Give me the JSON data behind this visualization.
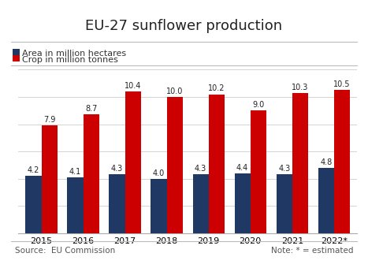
{
  "title": "EU-27 sunflower production",
  "years": [
    "2015",
    "2016",
    "2017",
    "2018",
    "2019",
    "2020",
    "2021",
    "2022*"
  ],
  "area": [
    4.2,
    4.1,
    4.3,
    4.0,
    4.3,
    4.4,
    4.3,
    4.8
  ],
  "crop": [
    7.9,
    8.7,
    10.4,
    10.0,
    10.2,
    9.0,
    10.3,
    10.5
  ],
  "area_color": "#1f3864",
  "crop_color": "#cc0000",
  "legend_area": "Area in million hectares",
  "legend_crop": "Crop in million tonnes",
  "source_text": "Source:  EU Commission",
  "note_text": "Note: * = estimated",
  "ylim": [
    0,
    12
  ],
  "bar_width": 0.38,
  "bg_color": "#ffffff",
  "title_fontsize": 13,
  "label_fontsize": 7,
  "tick_fontsize": 8,
  "legend_fontsize": 8,
  "footer_fontsize": 7.5
}
